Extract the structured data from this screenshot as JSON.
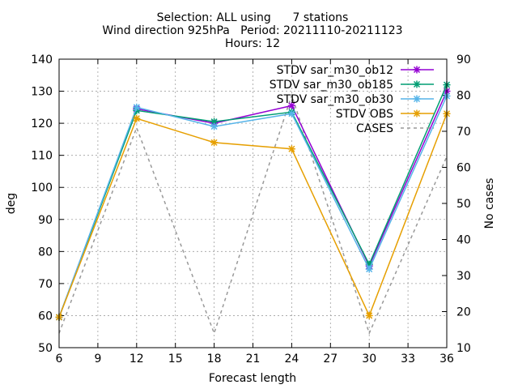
{
  "chart_data": {
    "type": "line",
    "title_lines": [
      "Selection: ALL using      7 stations",
      "Wind direction 925hPa   Period: 20211110-20211123",
      "Hours: 12"
    ],
    "xlabel": "Forecast length",
    "ylabel": "deg",
    "y2label": "No cases",
    "x": [
      6,
      12,
      18,
      24,
      30,
      36
    ],
    "xlim": [
      6,
      36
    ],
    "xticks": [
      6,
      9,
      12,
      15,
      18,
      21,
      24,
      27,
      30,
      33,
      36
    ],
    "ylim": [
      50,
      140
    ],
    "yticks": [
      50,
      60,
      70,
      80,
      90,
      100,
      110,
      120,
      130,
      140
    ],
    "y2lim": [
      10,
      90
    ],
    "y2ticks": [
      10,
      20,
      30,
      40,
      50,
      60,
      70,
      80,
      90
    ],
    "grid": true,
    "legend_position": "top-right",
    "series": [
      {
        "name": "STDV sar_m30_ob12",
        "color": "#9400d3",
        "axis": "left",
        "marker": "x",
        "values": [
          59.5,
          124.5,
          120.0,
          125.5,
          75.5,
          130.0
        ]
      },
      {
        "name": "STDV sar_m30_ob185",
        "color": "#009e73",
        "axis": "left",
        "marker": "x",
        "values": [
          59.5,
          124.0,
          120.5,
          123.5,
          76.0,
          132.0
        ]
      },
      {
        "name": "STDV sar_m30_ob30",
        "color": "#56b4e9",
        "axis": "left",
        "marker": "x",
        "values": [
          59.5,
          125.0,
          119.0,
          123.0,
          74.5,
          128.5
        ]
      },
      {
        "name": "STDV OBS",
        "color": "#e69f00",
        "axis": "left",
        "marker": "x",
        "values": [
          59.5,
          121.5,
          114.0,
          112.0,
          60.0,
          123.0
        ]
      },
      {
        "name": "CASES",
        "color": "#999999",
        "axis": "right",
        "dashed": true,
        "values": [
          14,
          71,
          14,
          80,
          14,
          63
        ]
      }
    ]
  }
}
